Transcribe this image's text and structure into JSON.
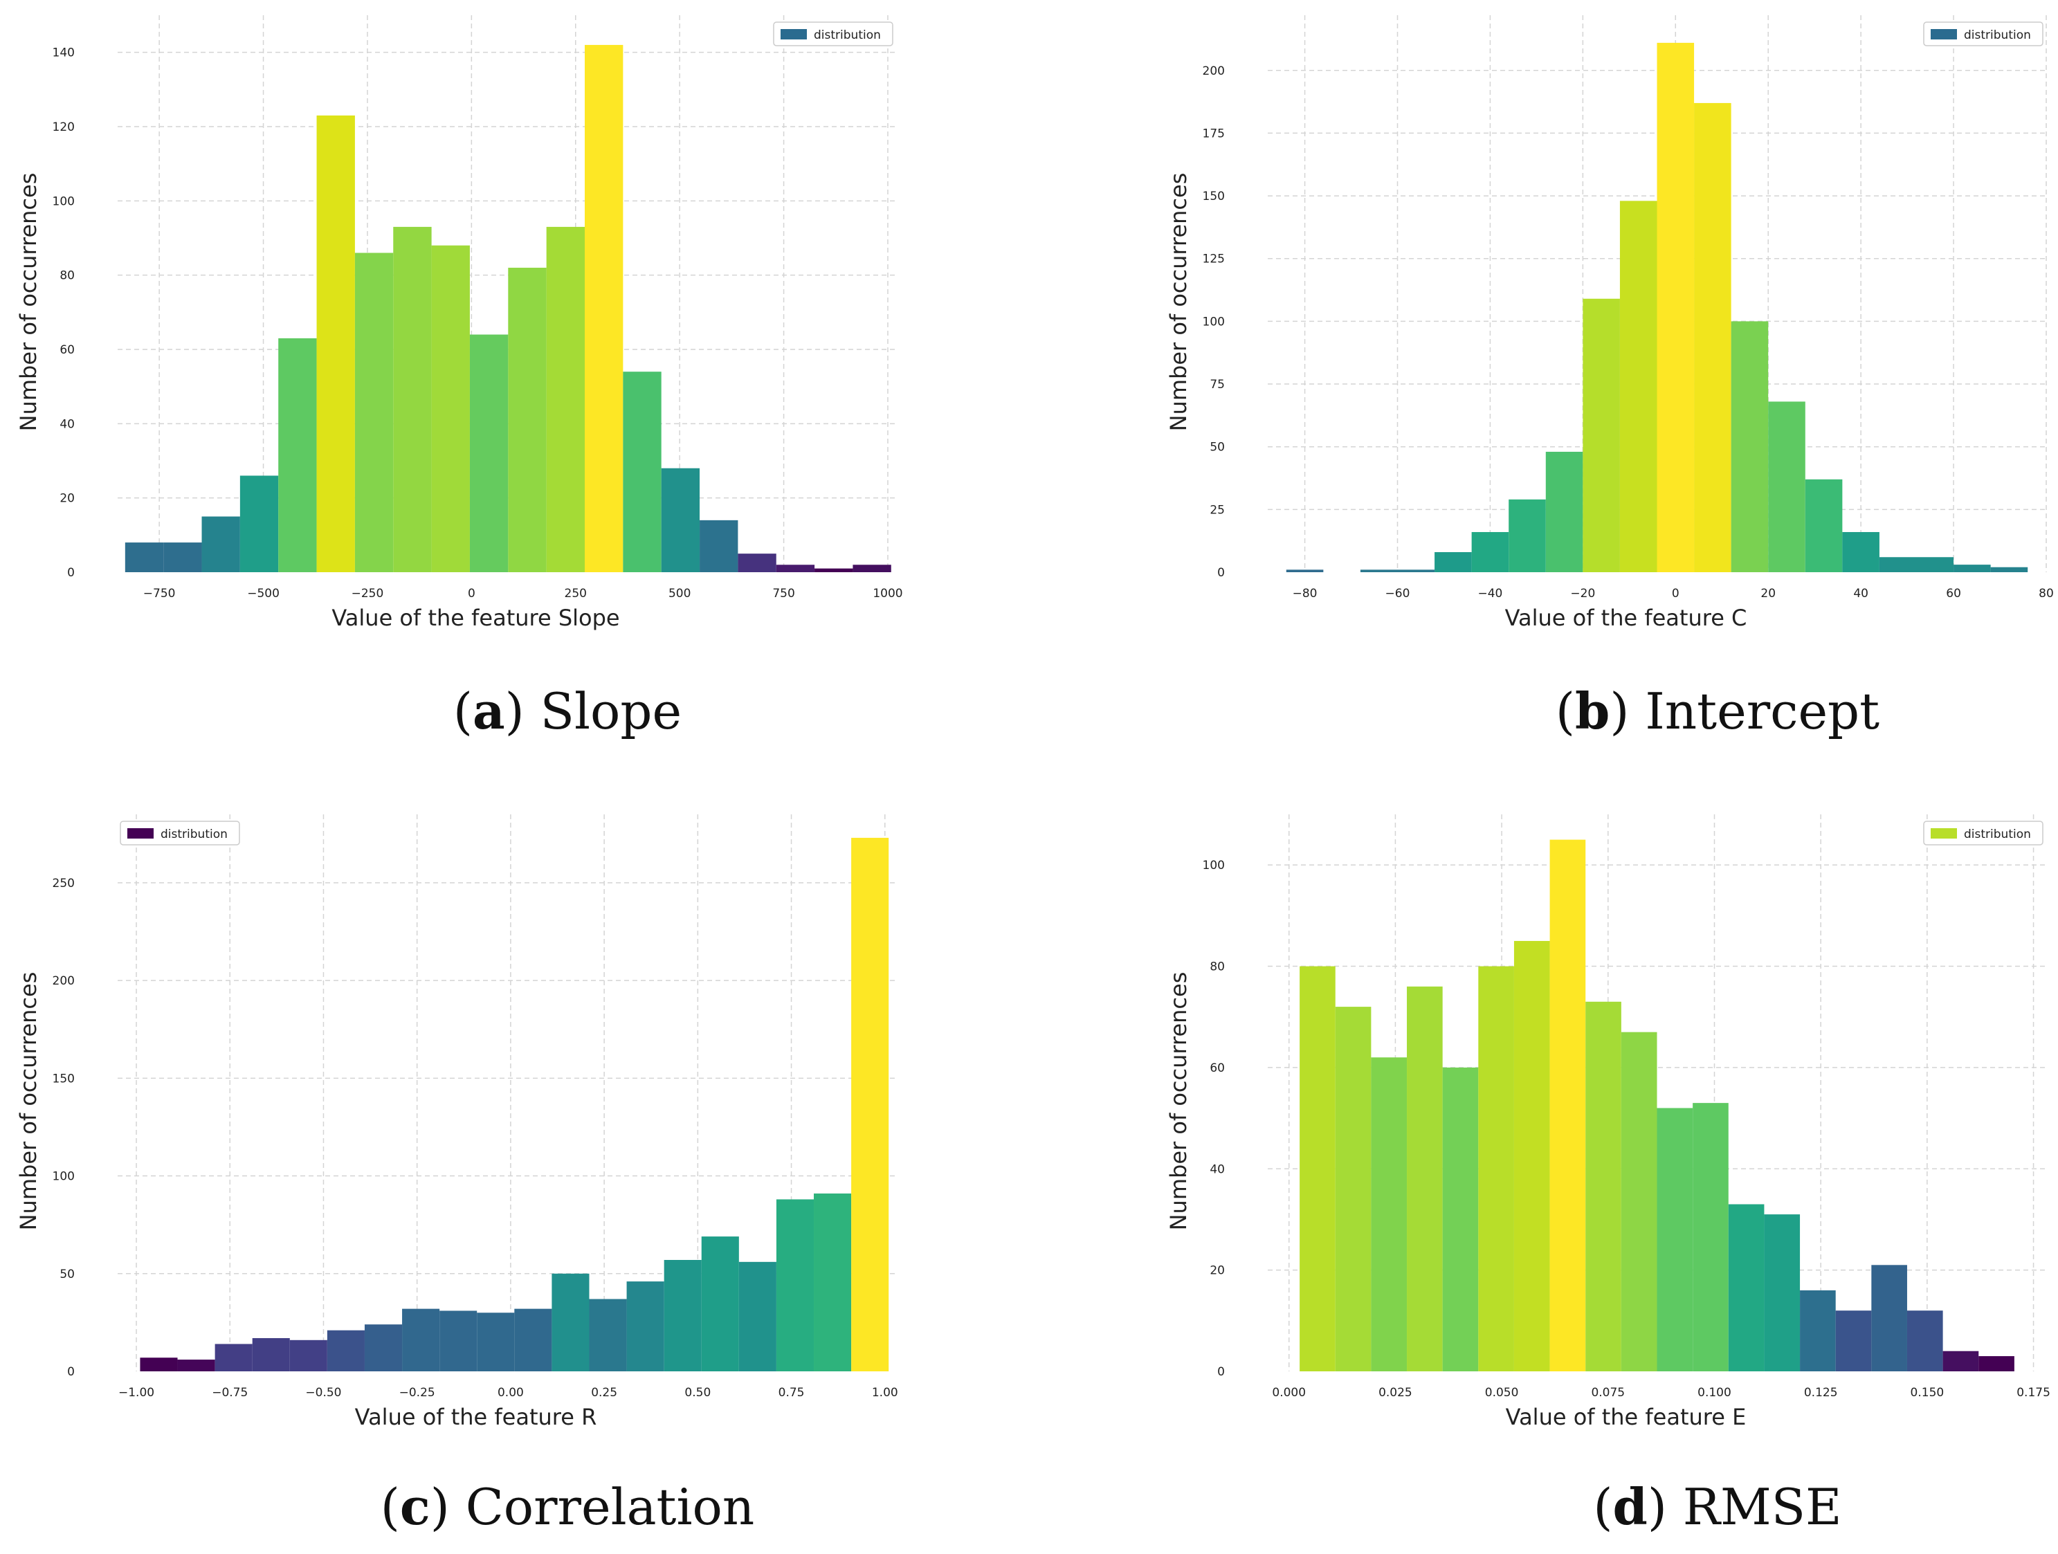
{
  "chart_data": [
    {
      "type": "bar",
      "panel_label": "a",
      "caption": "Slope",
      "xlabel": "Value of the feature Slope",
      "ylabel": "Number of occurrences",
      "legend": "distribution",
      "legend_color": "#2a6b8f",
      "legend_position": "top-right",
      "xlim": [
        -850,
        1020
      ],
      "ylim": [
        0,
        150
      ],
      "xticks": [
        -750,
        -500,
        -250,
        0,
        250,
        500,
        750,
        1000
      ],
      "xtick_labels": [
        "−750",
        "−500",
        "−250",
        "0",
        "250",
        "500",
        "750",
        "1000"
      ],
      "yticks": [
        0,
        20,
        40,
        60,
        80,
        100,
        120,
        140
      ],
      "grid": true,
      "bin_edges": [
        -832,
        -740,
        -648,
        -556,
        -464,
        -372,
        -280,
        -188,
        -96,
        -4,
        88,
        180,
        272,
        364,
        456,
        548,
        640,
        732,
        824,
        916,
        1008
      ],
      "values": [
        8,
        8,
        15,
        26,
        63,
        123,
        86,
        93,
        88,
        64,
        82,
        93,
        142,
        54,
        28,
        14,
        5,
        2,
        1,
        2
      ],
      "colors": [
        "#2e6e8e",
        "#2e6e8e",
        "#25838e",
        "#1f9e89",
        "#5ec962",
        "#dde318",
        "#84d44b",
        "#93d741",
        "#a0da39",
        "#65cb5e",
        "#90d743",
        "#a4db36",
        "#fde725",
        "#4ac16d",
        "#21918c",
        "#2c728e",
        "#46327e",
        "#481b6d",
        "#440154",
        "#440f5f"
      ]
    },
    {
      "type": "bar",
      "panel_label": "b",
      "caption": "Intercept",
      "xlabel": "Value of the feature C",
      "ylabel": "Number of occurrences",
      "legend": "distribution",
      "legend_color": "#2a6b8f",
      "legend_position": "top-right",
      "xlim": [
        -88,
        80
      ],
      "ylim": [
        0,
        222
      ],
      "xticks": [
        -80,
        -60,
        -40,
        -20,
        0,
        20,
        40,
        60,
        80
      ],
      "xtick_labels": [
        "−80",
        "−60",
        "−40",
        "−20",
        "0",
        "20",
        "40",
        "60",
        "80"
      ],
      "yticks": [
        0,
        25,
        50,
        75,
        100,
        125,
        150,
        175,
        200
      ],
      "grid": true,
      "bin_edges": [
        -84,
        -76,
        -68,
        -60,
        -52,
        -44,
        -36,
        -28,
        -20,
        -12,
        -4,
        4,
        12,
        20,
        28,
        36,
        44,
        52,
        60,
        68,
        76
      ],
      "values": [
        1,
        0,
        1,
        1,
        8,
        16,
        29,
        48,
        109,
        148,
        211,
        187,
        100,
        68,
        37,
        16,
        6,
        6,
        3,
        2
      ],
      "colors": [
        "#2f6c8e",
        "#2f6c8e",
        "#2a788e",
        "#2a788e",
        "#1e9b8a",
        "#22a884",
        "#2db27d",
        "#4ac16d",
        "#b5de2b",
        "#c8e020",
        "#fde725",
        "#f1e51d",
        "#7ad151",
        "#5ec962",
        "#3bbb75",
        "#1f9e89",
        "#21918c",
        "#21918c",
        "#228c8d",
        "#26828e"
      ]
    },
    {
      "type": "bar",
      "panel_label": "c",
      "caption": "Correlation",
      "xlabel": "Value of the feature R",
      "ylabel": "Number of occurrences",
      "legend": "distribution",
      "legend_color": "#440154",
      "legend_position": "top-left",
      "xlim": [
        -1.05,
        1.03
      ],
      "ylim": [
        0,
        285
      ],
      "xticks": [
        -1.0,
        -0.75,
        -0.5,
        -0.25,
        0.0,
        0.25,
        0.5,
        0.75,
        1.0
      ],
      "xtick_labels": [
        "−1.00",
        "−0.75",
        "−0.50",
        "−0.25",
        "0.00",
        "0.25",
        "0.50",
        "0.75",
        "1.00"
      ],
      "yticks": [
        0,
        50,
        100,
        150,
        200,
        250
      ],
      "grid": true,
      "bin_edges": [
        -0.99,
        -0.89,
        -0.79,
        -0.69,
        -0.59,
        -0.49,
        -0.39,
        -0.29,
        -0.19,
        -0.09,
        0.01,
        0.11,
        0.21,
        0.31,
        0.41,
        0.51,
        0.61,
        0.71,
        0.81,
        0.91,
        1.01
      ],
      "values": [
        7,
        6,
        14,
        17,
        16,
        21,
        24,
        32,
        31,
        30,
        32,
        50,
        37,
        46,
        57,
        69,
        56,
        88,
        91,
        273
      ],
      "colors": [
        "#440154",
        "#450559",
        "#433e85",
        "#423f85",
        "#424086",
        "#3b528b",
        "#355f8d",
        "#31688e",
        "#31688e",
        "#30698e",
        "#30698e",
        "#21908d",
        "#2a788e",
        "#24878e",
        "#1f968b",
        "#1f9e89",
        "#20928c",
        "#27ad81",
        "#2eb37c",
        "#fde725"
      ]
    },
    {
      "type": "bar",
      "panel_label": "d",
      "caption": "RMSE",
      "xlabel": "Value of the feature E",
      "ylabel": "Number of occurrences",
      "legend": "distribution",
      "legend_color": "#b8de29",
      "legend_position": "top-right",
      "xlim": [
        -0.005,
        0.178
      ],
      "ylim": [
        0,
        110
      ],
      "xticks": [
        0.0,
        0.025,
        0.05,
        0.075,
        0.1,
        0.125,
        0.15,
        0.175
      ],
      "xtick_labels": [
        "0.000",
        "0.025",
        "0.050",
        "0.075",
        "0.100",
        "0.125",
        "0.150",
        "0.175"
      ],
      "yticks": [
        0,
        20,
        40,
        60,
        80,
        100
      ],
      "grid": true,
      "bin_edges": [
        0.0025,
        0.0109,
        0.0193,
        0.0277,
        0.0361,
        0.0445,
        0.0529,
        0.0613,
        0.0697,
        0.0781,
        0.0865,
        0.0949,
        0.1033,
        0.1117,
        0.1201,
        0.1285,
        0.1369,
        0.1453,
        0.1537,
        0.1621,
        0.1705
      ],
      "values": [
        80,
        72,
        62,
        76,
        60,
        80,
        85,
        105,
        73,
        67,
        52,
        53,
        33,
        31,
        16,
        12,
        21,
        12,
        4,
        3
      ],
      "colors": [
        "#b8de29",
        "#a5db36",
        "#80d34c",
        "#a5db36",
        "#73d056",
        "#b8de29",
        "#c2df23",
        "#fde725",
        "#a5db36",
        "#8ed645",
        "#5ec962",
        "#5ec962",
        "#22a884",
        "#1fa088",
        "#2d6f8e",
        "#3a548c",
        "#33638d",
        "#3b528b",
        "#450f60",
        "#440154"
      ]
    }
  ]
}
